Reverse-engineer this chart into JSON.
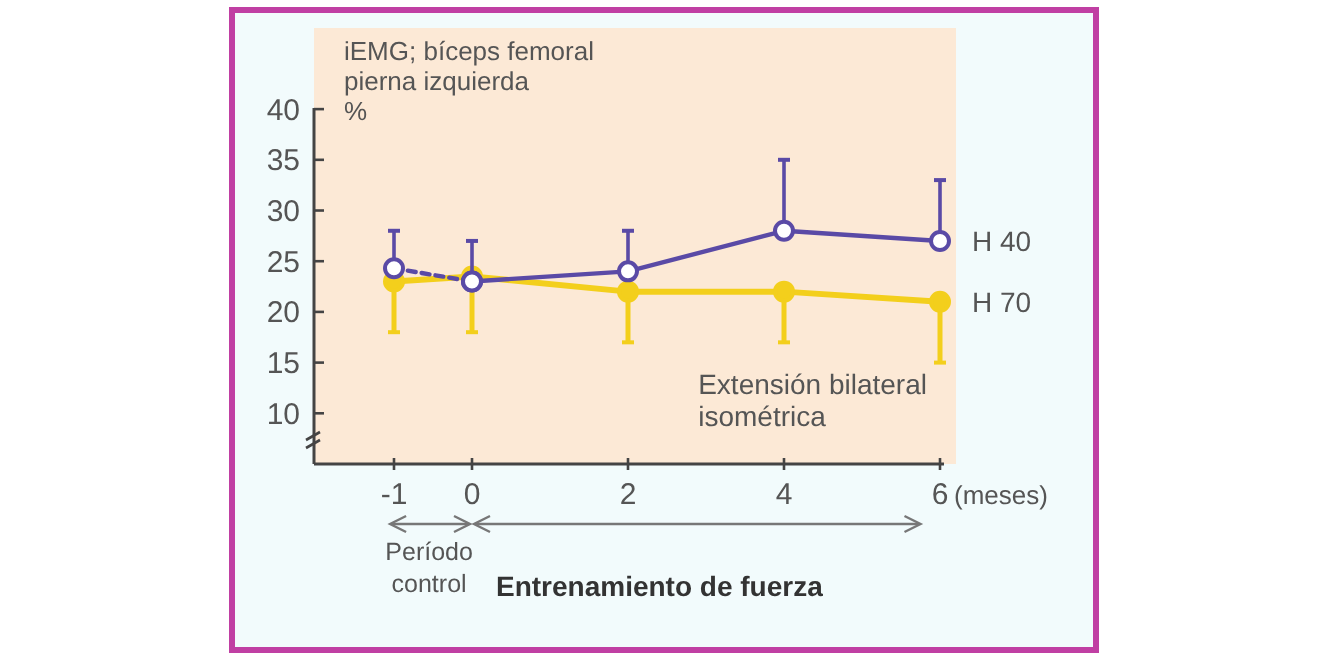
{
  "chart_data": {
    "type": "line",
    "ylabel": "iEMG; bíceps femoral\npierna izquierda\n%",
    "xlabel": "(meses)",
    "xlim": [
      -2,
      6
    ],
    "xticks": [
      -1,
      0,
      2,
      4,
      6
    ],
    "ylim": [
      5,
      48
    ],
    "yticks": [
      10,
      15,
      20,
      25,
      30,
      35,
      40
    ],
    "grid": false,
    "marker": "circle",
    "series": [
      {
        "color": "#5a4aa6",
        "x": [
          -1,
          0
        ],
        "values": [
          24.3,
          23
        ],
        "errors": [
          [
            24.3,
            28
          ],
          null
        ],
        "line_style": "dashed"
      },
      {
        "name": "H 40",
        "color": "#5a4aa6",
        "x": [
          0,
          2,
          4,
          6
        ],
        "values": [
          23,
          24,
          28,
          27
        ],
        "errors": [
          [
            23,
            27
          ],
          [
            24,
            28
          ],
          [
            28,
            35
          ],
          [
            27,
            33
          ]
        ],
        "line_style": "solid"
      },
      {
        "name": "H 70",
        "color": "#f3cf1c",
        "x": [
          -1,
          0,
          2,
          4,
          6
        ],
        "values": [
          23,
          23.5,
          22,
          22,
          21
        ],
        "errors": [
          [
            18,
            23
          ],
          [
            18,
            23.5
          ],
          [
            17,
            22
          ],
          [
            17,
            22
          ],
          [
            15,
            21
          ]
        ],
        "line_style": "solid"
      }
    ],
    "annotations": [
      "Extensión bilateral\nisométrica",
      "Período\ncontrol",
      "Entrenamiento de fuerza"
    ]
  }
}
